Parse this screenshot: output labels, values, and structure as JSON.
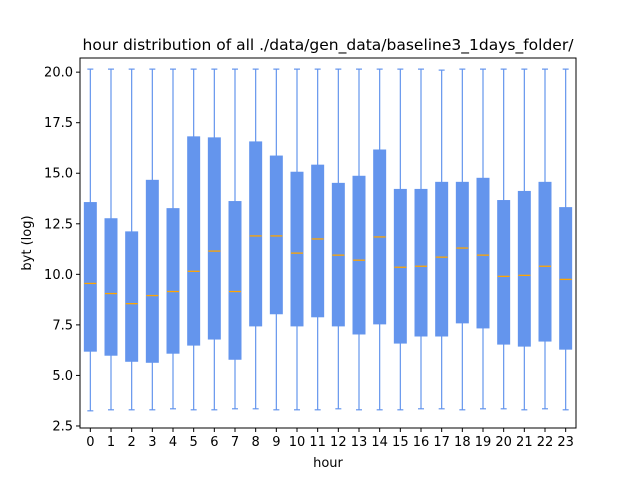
{
  "chart_data": {
    "type": "box",
    "title": "hour distribution of all ./data/gen_data/baseline3_1days_folder/",
    "xlabel": "hour",
    "ylabel": "byt (log)",
    "ylim": [
      2.4,
      20.7
    ],
    "yticks": [
      2.5,
      5.0,
      7.5,
      10.0,
      12.5,
      15.0,
      17.5,
      20.0
    ],
    "ytick_labels": [
      "2.5",
      "5.0",
      "7.5",
      "10.0",
      "12.5",
      "15.0",
      "17.5",
      "20.0"
    ],
    "categories": [
      "0",
      "1",
      "2",
      "3",
      "4",
      "5",
      "6",
      "7",
      "8",
      "9",
      "10",
      "11",
      "12",
      "13",
      "14",
      "15",
      "16",
      "17",
      "18",
      "19",
      "20",
      "21",
      "22",
      "23"
    ],
    "box_color": "#6495ED",
    "median_color": "#FFA500",
    "grid": false,
    "boxes": [
      {
        "min": 3.25,
        "q1": 6.2,
        "median": 9.55,
        "q3": 13.55,
        "max": 20.15
      },
      {
        "min": 3.3,
        "q1": 6.0,
        "median": 9.05,
        "q3": 12.75,
        "max": 20.15
      },
      {
        "min": 3.3,
        "q1": 5.7,
        "median": 8.55,
        "q3": 12.1,
        "max": 20.15
      },
      {
        "min": 3.3,
        "q1": 5.65,
        "median": 8.95,
        "q3": 14.65,
        "max": 20.15
      },
      {
        "min": 3.35,
        "q1": 6.1,
        "median": 9.15,
        "q3": 13.25,
        "max": 20.15
      },
      {
        "min": 3.3,
        "q1": 6.5,
        "median": 10.15,
        "q3": 16.8,
        "max": 20.15
      },
      {
        "min": 3.3,
        "q1": 6.8,
        "median": 11.15,
        "q3": 16.75,
        "max": 20.15
      },
      {
        "min": 3.35,
        "q1": 5.8,
        "median": 9.15,
        "q3": 13.6,
        "max": 20.15
      },
      {
        "min": 3.35,
        "q1": 7.45,
        "median": 11.9,
        "q3": 16.55,
        "max": 20.15
      },
      {
        "min": 3.3,
        "q1": 8.05,
        "median": 11.9,
        "q3": 15.85,
        "max": 20.15
      },
      {
        "min": 3.3,
        "q1": 7.45,
        "median": 11.05,
        "q3": 15.05,
        "max": 20.15
      },
      {
        "min": 3.3,
        "q1": 7.9,
        "median": 11.75,
        "q3": 15.4,
        "max": 20.15
      },
      {
        "min": 3.35,
        "q1": 7.45,
        "median": 10.95,
        "q3": 14.5,
        "max": 20.15
      },
      {
        "min": 3.3,
        "q1": 7.05,
        "median": 10.7,
        "q3": 14.85,
        "max": 20.15
      },
      {
        "min": 3.3,
        "q1": 7.55,
        "median": 11.85,
        "q3": 16.15,
        "max": 20.15
      },
      {
        "min": 3.3,
        "q1": 6.6,
        "median": 10.35,
        "q3": 14.2,
        "max": 20.15
      },
      {
        "min": 3.35,
        "q1": 6.95,
        "median": 10.4,
        "q3": 14.2,
        "max": 20.15
      },
      {
        "min": 3.35,
        "q1": 6.95,
        "median": 10.85,
        "q3": 14.55,
        "max": 20.1
      },
      {
        "min": 3.3,
        "q1": 7.6,
        "median": 11.3,
        "q3": 14.55,
        "max": 20.15
      },
      {
        "min": 3.35,
        "q1": 7.35,
        "median": 10.95,
        "q3": 14.75,
        "max": 20.15
      },
      {
        "min": 3.35,
        "q1": 6.55,
        "median": 9.9,
        "q3": 13.65,
        "max": 20.15
      },
      {
        "min": 3.3,
        "q1": 6.45,
        "median": 9.95,
        "q3": 14.1,
        "max": 20.15
      },
      {
        "min": 3.35,
        "q1": 6.7,
        "median": 10.4,
        "q3": 14.55,
        "max": 20.15
      },
      {
        "min": 3.3,
        "q1": 6.3,
        "median": 9.75,
        "q3": 13.3,
        "max": 20.15
      }
    ]
  }
}
